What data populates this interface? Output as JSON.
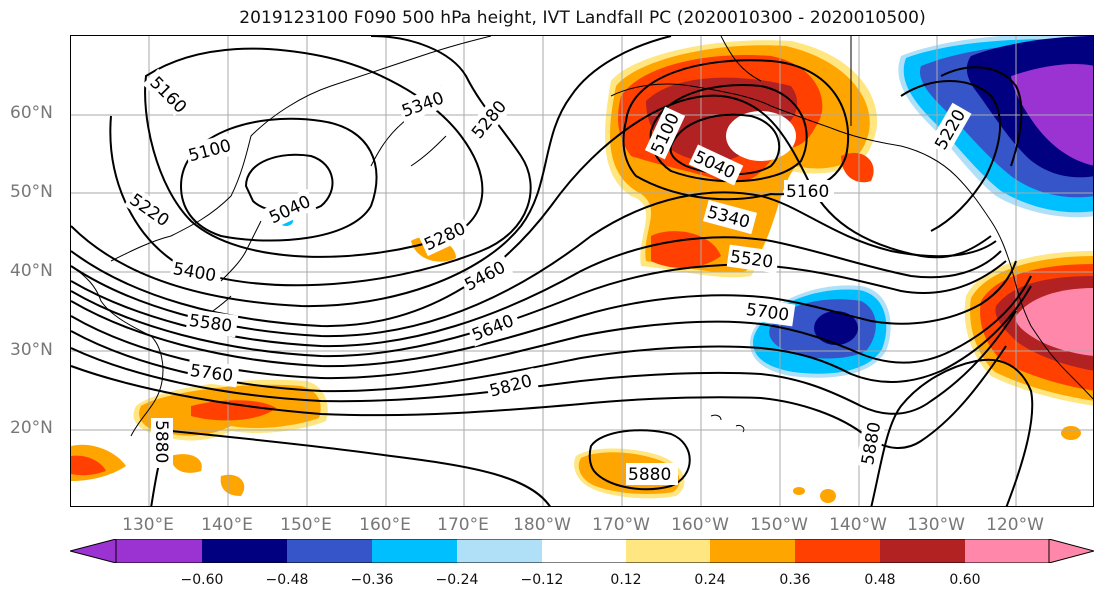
{
  "title": "2019123100 F090 500 hPa height, IVT Landfall PC (2020010300 - 2020010500)",
  "latitude_labels": [
    "60°N",
    "50°N",
    "40°N",
    "30°N",
    "20°N"
  ],
  "longitude_labels": [
    "130°E",
    "140°E",
    "150°E",
    "160°E",
    "170°E",
    "180°W",
    "170°W",
    "160°W",
    "150°W",
    "140°W",
    "130°W",
    "120°W"
  ],
  "contour_labels": [
    "5160",
    "5100",
    "5220",
    "5040",
    "5340",
    "5280",
    "5280",
    "5400",
    "5580",
    "5760",
    "5880",
    "5460",
    "5640",
    "5820",
    "5880",
    "5100",
    "5040",
    "5160",
    "5340",
    "5520",
    "5700",
    "5880",
    "5220"
  ],
  "colorbar": {
    "tick_labels": [
      "−0.60",
      "−0.48",
      "−0.36",
      "−0.24",
      "−0.12",
      "0.12",
      "0.24",
      "0.36",
      "0.48",
      "0.60"
    ],
    "colors": [
      "#9b32d2",
      "#000080",
      "#3655c8",
      "#00bfff",
      "#b0e0f8",
      "#ffffff",
      "#ffe680",
      "#ffa500",
      "#ff4000",
      "#b22222",
      "#ff88aa",
      "#ff88aa"
    ]
  },
  "shading_colors": {
    "purple": "#9b32d2",
    "navy": "#000080",
    "blue": "#3655c8",
    "cyan": "#00bfff",
    "lightblue": "#b0e0f8",
    "yellow": "#ffe680",
    "orange": "#ffa500",
    "redorange": "#ff4000",
    "darkred": "#b22222",
    "pink": "#ff88aa"
  }
}
